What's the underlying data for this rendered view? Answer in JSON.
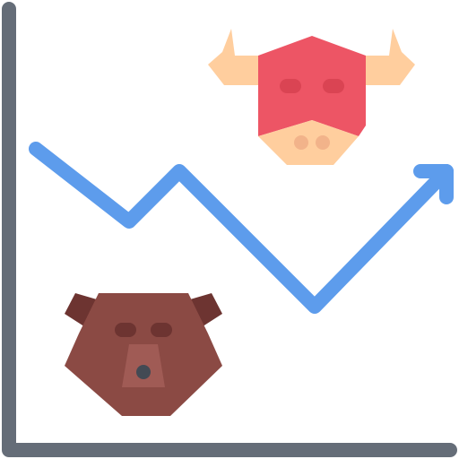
{
  "icon": {
    "name": "bull-bear-market-icon",
    "colors": {
      "axis": "#656D78",
      "trend_line": "#5D9CEC",
      "bull_head": "#ED5565",
      "bull_muzzle_and_horns": "#FFCE9E",
      "bull_nostril": "#F2B38A",
      "bull_eye": "#DA4453",
      "bear_head": "#8B4A44",
      "bear_ear": "#6D3431",
      "bear_snout": "#A05B55",
      "bear_eye": "#6D3431",
      "bear_nose": "#434A54"
    },
    "trend_direction": "up"
  }
}
